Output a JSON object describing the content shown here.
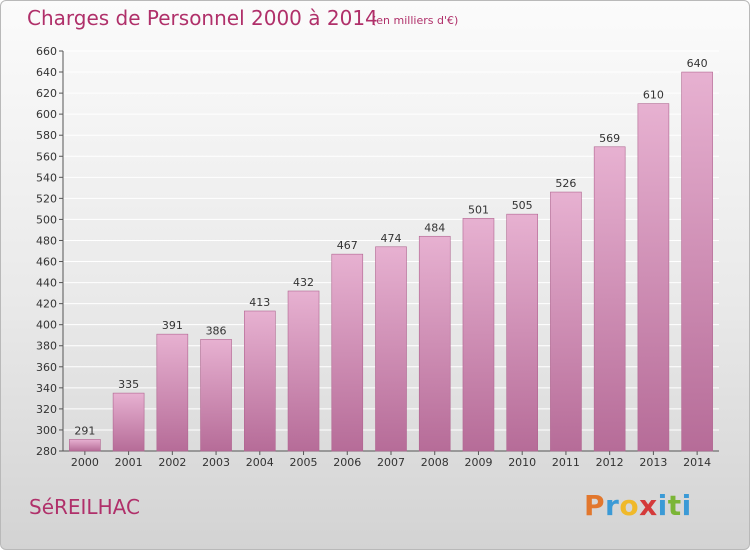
{
  "header": {
    "title": "Charges de Personnel 2000 à 2014",
    "unit": "(en milliers d'€)"
  },
  "footer": {
    "commune": "SéREILHAC",
    "logo_letters": [
      "P",
      "r",
      "o",
      "x",
      "i",
      "t",
      "i"
    ],
    "logo_colors": [
      "#e2772d",
      "#3b9ad6",
      "#f0b92a",
      "#d43a3a",
      "#3b9ad6",
      "#7bb536",
      "#3b9ad6"
    ]
  },
  "colors": {
    "accent": "#b0306a",
    "bar_top": "#e7b1d1",
    "bar_bottom": "#b66c98",
    "bar_edge": "#b06590",
    "grid": "#ffffff",
    "axis": "#555555"
  },
  "chart_data": {
    "type": "bar",
    "title": "Charges de Personnel 2000 à 2014",
    "subtitle": "(en milliers d'€)",
    "xlabel": "",
    "ylabel": "",
    "categories": [
      "2000",
      "2001",
      "2002",
      "2003",
      "2004",
      "2005",
      "2006",
      "2007",
      "2008",
      "2009",
      "2010",
      "2011",
      "2012",
      "2013",
      "2014"
    ],
    "values": [
      291,
      335,
      391,
      386,
      413,
      432,
      467,
      474,
      484,
      501,
      505,
      526,
      569,
      610,
      640
    ],
    "ylim": [
      280,
      660
    ],
    "yticks": [
      280,
      300,
      320,
      340,
      360,
      380,
      400,
      420,
      440,
      460,
      480,
      500,
      520,
      540,
      560,
      580,
      600,
      620,
      640,
      660
    ],
    "grid": true,
    "legend": "none"
  }
}
